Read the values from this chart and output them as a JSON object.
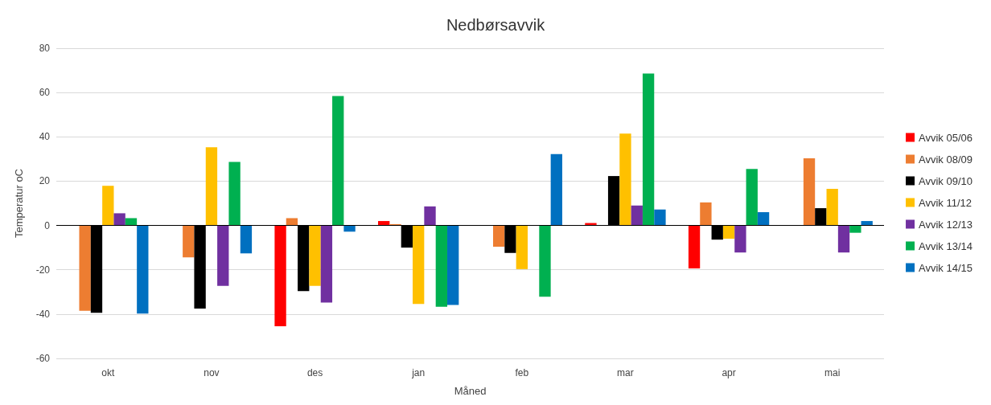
{
  "chart_data": {
    "type": "bar",
    "title": "Nedbørsavvik",
    "xlabel": "Måned",
    "ylabel": "Temperatur oC",
    "categories": [
      "okt",
      "nov",
      "des",
      "jan",
      "feb",
      "mar",
      "apr",
      "mai"
    ],
    "series": [
      {
        "name": "Avvik 05/06",
        "color": "#ff0000",
        "values": [
          null,
          null,
          -45.5,
          2.0,
          null,
          1.1,
          -19.4,
          null
        ]
      },
      {
        "name": "Avvik 08/09",
        "color": "#ed7d31",
        "values": [
          -38.5,
          -14.4,
          3.3,
          0.6,
          -9.6,
          null,
          10.4,
          30.3
        ]
      },
      {
        "name": "Avvik 09/10",
        "color": "#000000",
        "values": [
          -39.4,
          -37.5,
          -29.6,
          -10.0,
          -12.4,
          22.3,
          -6.4,
          7.8
        ]
      },
      {
        "name": "Avvik 11/12",
        "color": "#ffc000",
        "values": [
          17.9,
          35.3,
          -27.3,
          -35.4,
          -19.7,
          41.5,
          -6.0,
          16.5
        ]
      },
      {
        "name": "Avvik 12/13",
        "color": "#7030a0",
        "values": [
          5.5,
          -27.3,
          -34.8,
          8.6,
          null,
          9.0,
          -12.2,
          -12.2
        ]
      },
      {
        "name": "Avvik 13/14",
        "color": "#00b050",
        "values": [
          3.3,
          28.7,
          58.4,
          -36.7,
          -32.2,
          68.6,
          25.5,
          -3.3
        ]
      },
      {
        "name": "Avvik 14/15",
        "color": "#0070c0",
        "values": [
          -39.8,
          -12.6,
          -2.8,
          -35.9,
          32.2,
          7.2,
          6.0,
          2.0
        ]
      }
    ],
    "ref_lines": [
      {
        "axis": "y",
        "value": 0,
        "color": "#000000"
      }
    ],
    "ylim": [
      -60,
      80
    ],
    "yticks": [
      -60,
      -40,
      -20,
      0,
      20,
      40,
      60,
      80
    ],
    "grid": "y",
    "legend": "right"
  }
}
